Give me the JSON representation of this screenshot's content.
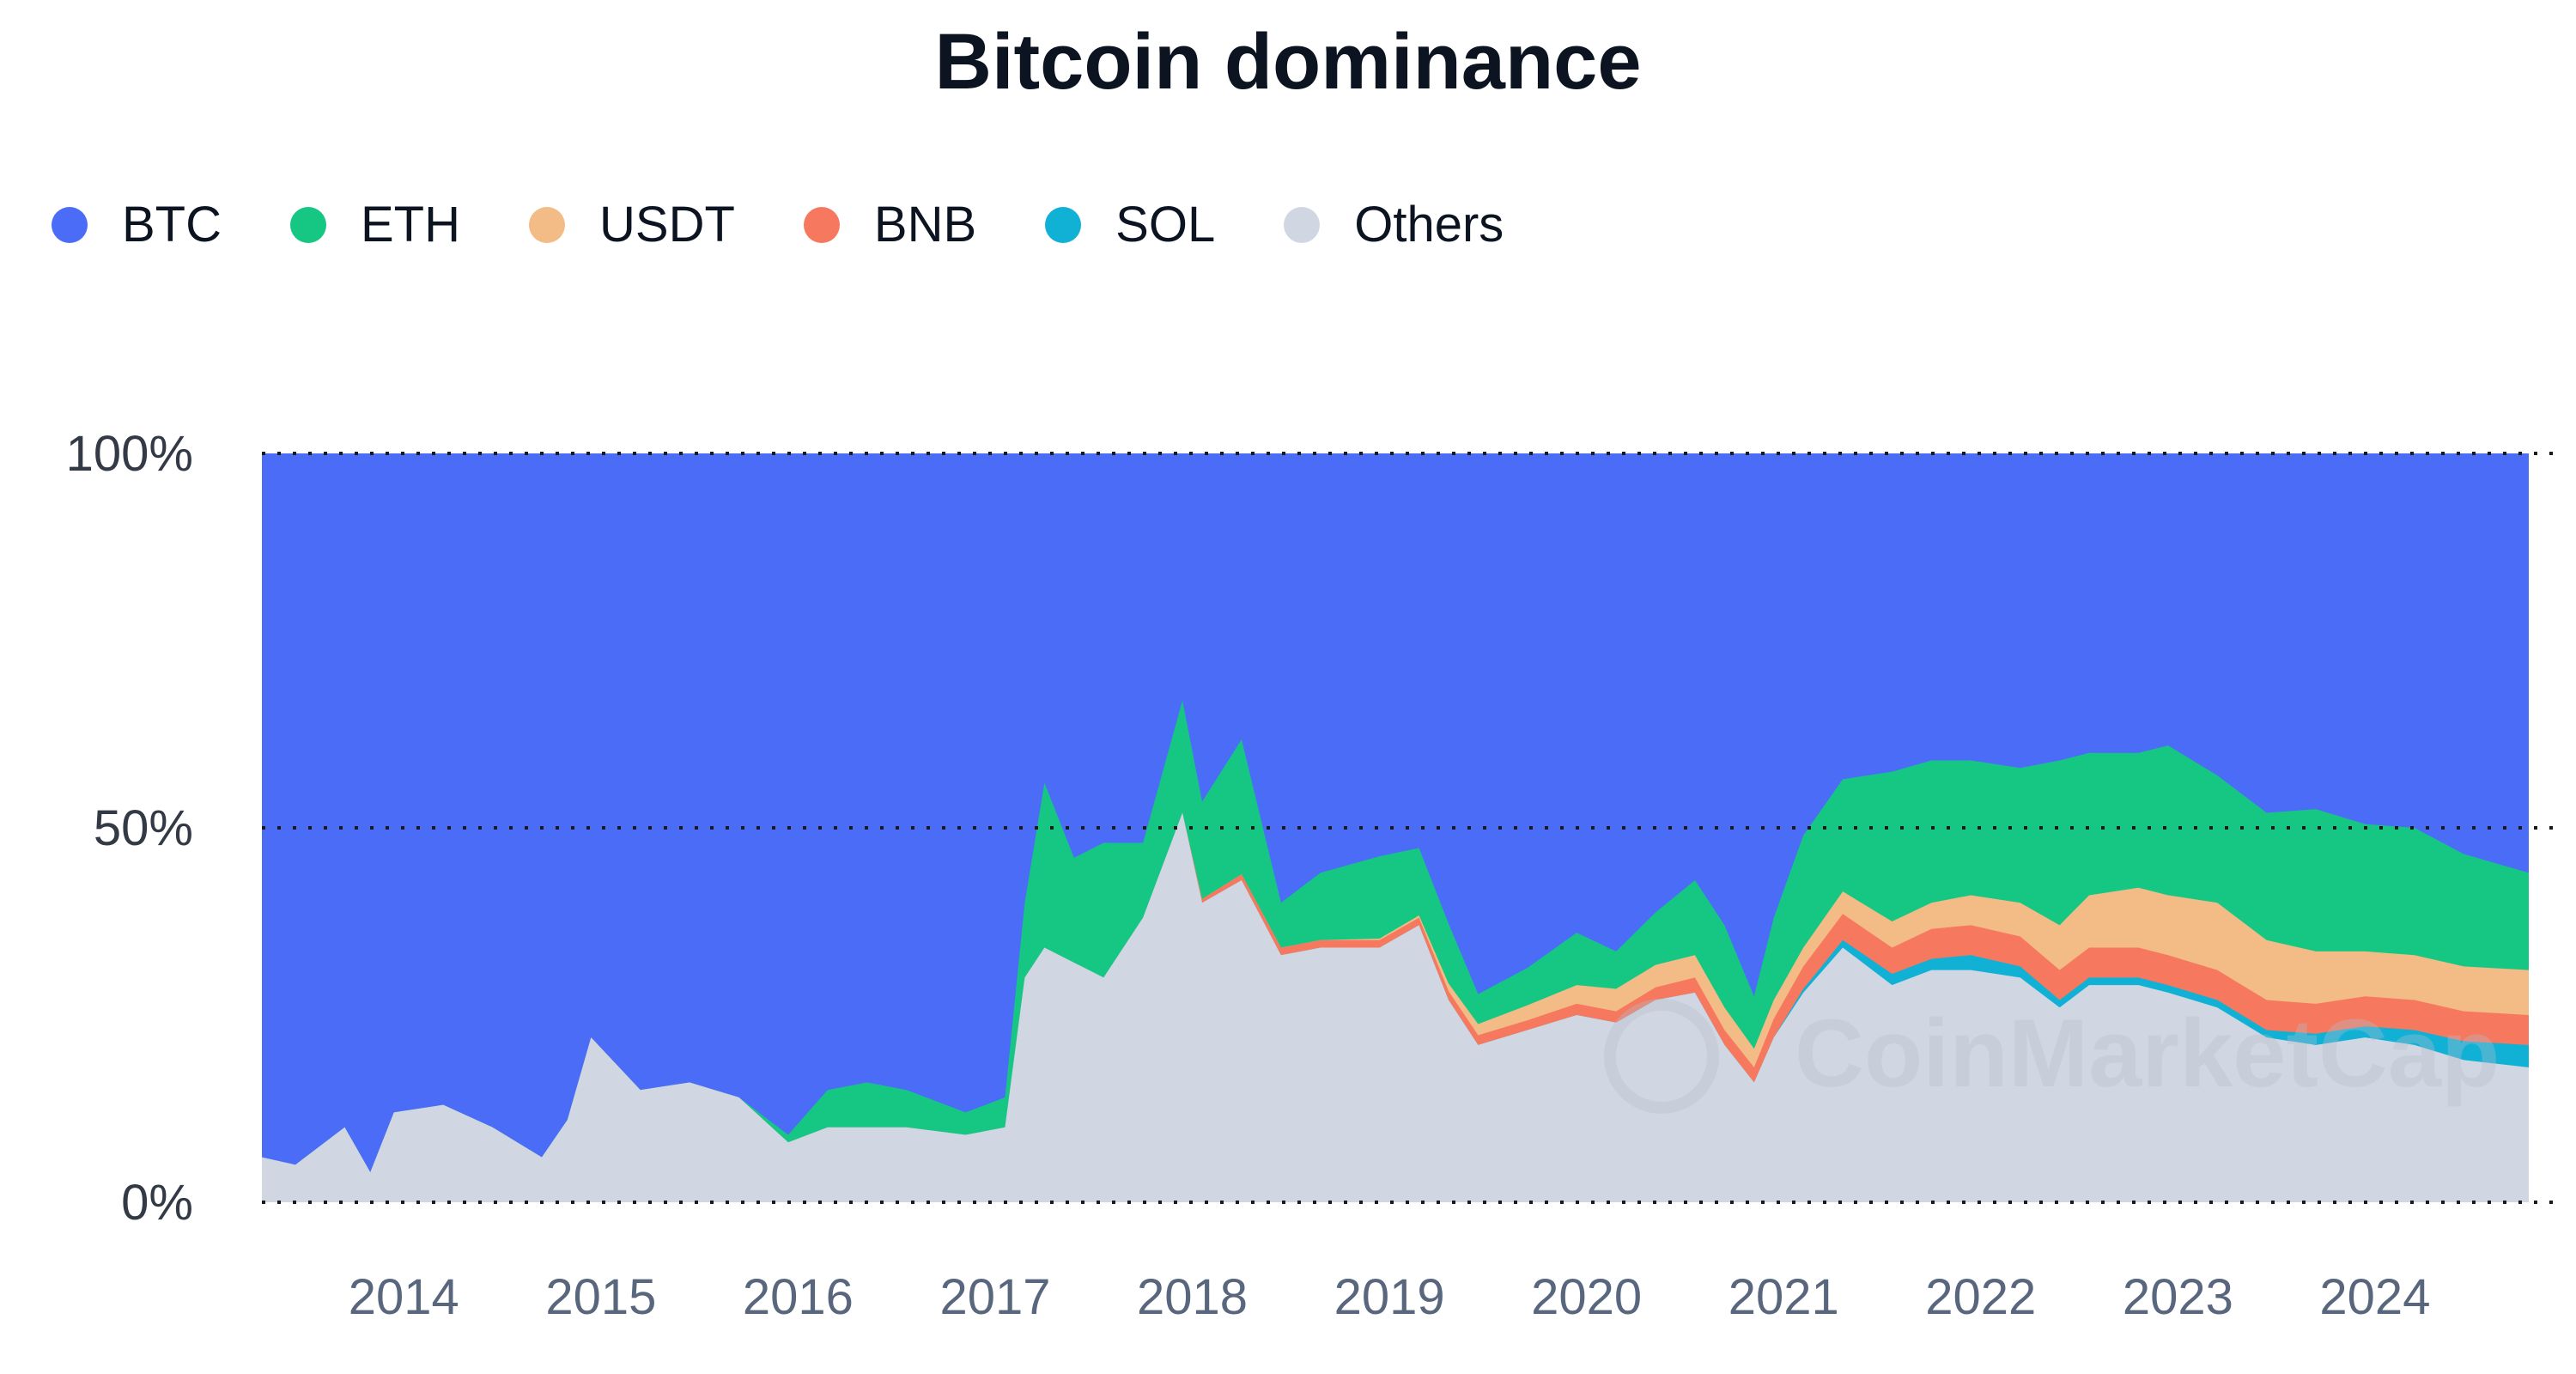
{
  "chart_data": {
    "type": "area",
    "stacked": true,
    "normalized_percent": true,
    "title": "Bitcoin dominance",
    "x_ticks": [
      "2014",
      "2015",
      "2016",
      "2017",
      "2018",
      "2019",
      "2020",
      "2021",
      "2022",
      "2023",
      "2024"
    ],
    "y_ticks": [
      "0%",
      "50%",
      "100%"
    ],
    "ylim": [
      0,
      100
    ],
    "xlim": [
      2013.33,
      2024.83
    ],
    "grid": "dotted horizontal at 0%, 50%, 100%",
    "legend_position": "top-left",
    "watermark": "CoinMarketCap",
    "series": [
      {
        "name": "BTC",
        "color": "#4a6cf7"
      },
      {
        "name": "ETH",
        "color": "#16c784"
      },
      {
        "name": "USDT",
        "color": "#f3bb85"
      },
      {
        "name": "BNB",
        "color": "#f6785e"
      },
      {
        "name": "SOL",
        "color": "#11b1d6"
      },
      {
        "name": "Others",
        "color": "#d1d7e2"
      }
    ],
    "x": [
      2013.33,
      2013.5,
      2013.75,
      2013.88,
      2014.0,
      2014.25,
      2014.5,
      2014.75,
      2014.88,
      2015.0,
      2015.25,
      2015.5,
      2015.75,
      2016.0,
      2016.2,
      2016.4,
      2016.6,
      2016.9,
      2017.1,
      2017.2,
      2017.3,
      2017.45,
      2017.6,
      2017.8,
      2018.0,
      2018.1,
      2018.3,
      2018.5,
      2018.7,
      2019.0,
      2019.2,
      2019.35,
      2019.5,
      2019.75,
      2020.0,
      2020.2,
      2020.4,
      2020.6,
      2020.75,
      2020.9,
      2021.0,
      2021.15,
      2021.35,
      2021.6,
      2021.8,
      2022.0,
      2022.25,
      2022.45,
      2022.6,
      2022.85,
      2023.0,
      2023.25,
      2023.5,
      2023.75,
      2024.0,
      2024.25,
      2024.5,
      2024.83
    ],
    "others": [
      6,
      5,
      10,
      4,
      12,
      13,
      10,
      6,
      11,
      22,
      15,
      16,
      14,
      8,
      10,
      10,
      10,
      9,
      10,
      30,
      34,
      32,
      30,
      38,
      52,
      40,
      43,
      33,
      34,
      34,
      37,
      27,
      21,
      23,
      25,
      24,
      27,
      28,
      21,
      16,
      22,
      28,
      34,
      29,
      31,
      31,
      30,
      26,
      29,
      29,
      28,
      26,
      22,
      21,
      22,
      21,
      19,
      18
    ],
    "sol": [
      0,
      0,
      0,
      0,
      0,
      0,
      0,
      0,
      0,
      0,
      0,
      0,
      0,
      0,
      0,
      0,
      0,
      0,
      0,
      0,
      0,
      0,
      0,
      0,
      0,
      0,
      0,
      0,
      0,
      0,
      0,
      0,
      0,
      0,
      0,
      0,
      0,
      0,
      0,
      0,
      0,
      0.5,
      1,
      1.5,
      1.5,
      2,
      1.5,
      1,
      1,
      1,
      1,
      1,
      1,
      1.5,
      1.5,
      2,
      2.5,
      3
    ],
    "bnb": [
      0,
      0,
      0,
      0,
      0,
      0,
      0,
      0,
      0,
      0,
      0,
      0,
      0,
      0,
      0,
      0,
      0,
      0,
      0,
      0,
      0,
      0,
      0,
      0,
      0,
      0.5,
      0.8,
      1,
      1,
      1,
      1,
      1.2,
      1.3,
      1.3,
      1.5,
      1.5,
      1.7,
      2,
      2,
      2,
      2.5,
      3,
      3.5,
      3.5,
      4,
      4,
      4,
      4,
      4,
      4,
      4,
      4,
      4,
      4,
      4,
      4,
      4,
      4
    ],
    "usdt": [
      0,
      0,
      0,
      0,
      0,
      0,
      0,
      0,
      0,
      0,
      0,
      0,
      0,
      0,
      0,
      0,
      0,
      0,
      0,
      0,
      0,
      0,
      0,
      0,
      0,
      0,
      0,
      0,
      0,
      0.2,
      0.3,
      1,
      1.5,
      2,
      2.5,
      3,
      3,
      3,
      3,
      2.5,
      2.5,
      2.5,
      3,
      3.5,
      3.5,
      4,
      4.5,
      6,
      7,
      8,
      8,
      9,
      8,
      7,
      6,
      6,
      6,
      6
    ],
    "eth": [
      0,
      0,
      0,
      0,
      0,
      0,
      0,
      0,
      0,
      0,
      0,
      0,
      0,
      1,
      5,
      6,
      5,
      3,
      4,
      10,
      22,
      14,
      18,
      10,
      15,
      13,
      18,
      6,
      9,
      11,
      9,
      8,
      4,
      5,
      7,
      5,
      7,
      10,
      11,
      7,
      11,
      15,
      15,
      20,
      19,
      18,
      18,
      22,
      19,
      18,
      20,
      17,
      17,
      19,
      17,
      17,
      15,
      13
    ]
  }
}
